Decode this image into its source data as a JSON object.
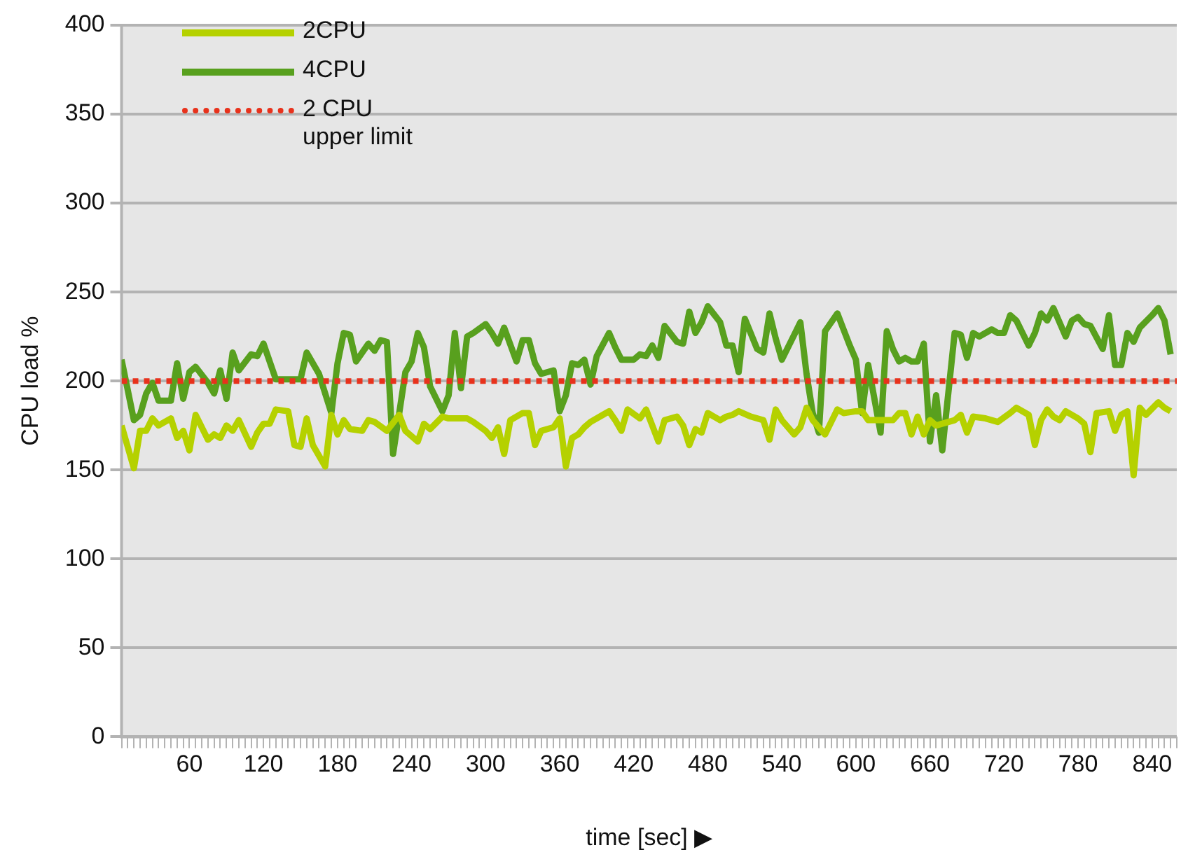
{
  "chart_data": {
    "type": "line",
    "xlabel": "time [sec] ▶",
    "ylabel": "CPU load %",
    "grid": "y",
    "legend": "top left",
    "marker": "none",
    "xlim": [
      5,
      860
    ],
    "ylim": [
      0,
      400
    ],
    "yticks": [
      0,
      50,
      100,
      150,
      200,
      250,
      300,
      350,
      400
    ],
    "xticks": [
      {
        "value": 5,
        "label": null
      },
      {
        "value": 10,
        "label": null
      },
      {
        "value": 15,
        "label": null
      },
      {
        "value": 20,
        "label": null
      },
      {
        "value": 25,
        "label": null
      },
      {
        "value": 30,
        "label": null
      },
      {
        "value": 35,
        "label": null
      },
      {
        "value": 40,
        "label": null
      },
      {
        "value": 45,
        "label": null
      },
      {
        "value": 50,
        "label": null
      },
      {
        "value": 55,
        "label": null
      },
      60,
      {
        "value": 65,
        "label": null
      },
      {
        "value": 70,
        "label": null
      },
      {
        "value": 75,
        "label": null
      },
      {
        "value": 80,
        "label": null
      },
      {
        "value": 85,
        "label": null
      },
      {
        "value": 90,
        "label": null
      },
      {
        "value": 95,
        "label": null
      },
      {
        "value": 100,
        "label": null
      },
      {
        "value": 105,
        "label": null
      },
      {
        "value": 110,
        "label": null
      },
      {
        "value": 115,
        "label": null
      },
      120,
      {
        "value": 125,
        "label": null
      },
      {
        "value": 130,
        "label": null
      },
      {
        "value": 135,
        "label": null
      },
      {
        "value": 140,
        "label": null
      },
      {
        "value": 145,
        "label": null
      },
      {
        "value": 150,
        "label": null
      },
      {
        "value": 155,
        "label": null
      },
      {
        "value": 160,
        "label": null
      },
      {
        "value": 165,
        "label": null
      },
      {
        "value": 170,
        "label": null
      },
      {
        "value": 175,
        "label": null
      },
      180,
      {
        "value": 185,
        "label": null
      },
      {
        "value": 190,
        "label": null
      },
      {
        "value": 195,
        "label": null
      },
      {
        "value": 200,
        "label": null
      },
      {
        "value": 205,
        "label": null
      },
      {
        "value": 210,
        "label": null
      },
      {
        "value": 215,
        "label": null
      },
      {
        "value": 220,
        "label": null
      },
      {
        "value": 225,
        "label": null
      },
      {
        "value": 230,
        "label": null
      },
      {
        "value": 235,
        "label": null
      },
      240,
      {
        "value": 245,
        "label": null
      },
      {
        "value": 250,
        "label": null
      },
      {
        "value": 255,
        "label": null
      },
      {
        "value": 260,
        "label": null
      },
      {
        "value": 265,
        "label": null
      },
      {
        "value": 270,
        "label": null
      },
      {
        "value": 275,
        "label": null
      },
      {
        "value": 280,
        "label": null
      },
      {
        "value": 285,
        "label": null
      },
      {
        "value": 290,
        "label": null
      },
      {
        "value": 295,
        "label": null
      },
      300,
      {
        "value": 305,
        "label": null
      },
      {
        "value": 310,
        "label": null
      },
      {
        "value": 315,
        "label": null
      },
      {
        "value": 320,
        "label": null
      },
      {
        "value": 325,
        "label": null
      },
      {
        "value": 330,
        "label": null
      },
      {
        "value": 335,
        "label": null
      },
      {
        "value": 340,
        "label": null
      },
      {
        "value": 345,
        "label": null
      },
      {
        "value": 350,
        "label": null
      },
      {
        "value": 355,
        "label": null
      },
      360,
      {
        "value": 365,
        "label": null
      },
      {
        "value": 370,
        "label": null
      },
      {
        "value": 375,
        "label": null
      },
      {
        "value": 380,
        "label": null
      },
      {
        "value": 385,
        "label": null
      },
      {
        "value": 390,
        "label": null
      },
      {
        "value": 395,
        "label": null
      },
      {
        "value": 400,
        "label": null
      },
      {
        "value": 405,
        "label": null
      },
      {
        "value": 410,
        "label": null
      },
      {
        "value": 415,
        "label": null
      },
      420,
      {
        "value": 425,
        "label": null
      },
      {
        "value": 430,
        "label": null
      },
      {
        "value": 435,
        "label": null
      },
      {
        "value": 440,
        "label": null
      },
      {
        "value": 445,
        "label": null
      },
      {
        "value": 450,
        "label": null
      },
      {
        "value": 455,
        "label": null
      },
      {
        "value": 460,
        "label": null
      },
      {
        "value": 465,
        "label": null
      },
      {
        "value": 470,
        "label": null
      },
      {
        "value": 475,
        "label": null
      },
      480,
      {
        "value": 485,
        "label": null
      },
      {
        "value": 490,
        "label": null
      },
      {
        "value": 495,
        "label": null
      },
      {
        "value": 500,
        "label": null
      },
      {
        "value": 505,
        "label": null
      },
      {
        "value": 510,
        "label": null
      },
      {
        "value": 515,
        "label": null
      },
      {
        "value": 520,
        "label": null
      },
      {
        "value": 525,
        "label": null
      },
      {
        "value": 530,
        "label": null
      },
      {
        "value": 535,
        "label": null
      },
      540,
      {
        "value": 545,
        "label": null
      },
      {
        "value": 550,
        "label": null
      },
      {
        "value": 555,
        "label": null
      },
      {
        "value": 560,
        "label": null
      },
      {
        "value": 565,
        "label": null
      },
      {
        "value": 570,
        "label": null
      },
      {
        "value": 575,
        "label": null
      },
      {
        "value": 580,
        "label": null
      },
      {
        "value": 585,
        "label": null
      },
      {
        "value": 590,
        "label": null
      },
      {
        "value": 595,
        "label": null
      },
      600,
      {
        "value": 605,
        "label": null
      },
      {
        "value": 610,
        "label": null
      },
      {
        "value": 615,
        "label": null
      },
      {
        "value": 620,
        "label": null
      },
      {
        "value": 625,
        "label": null
      },
      {
        "value": 630,
        "label": null
      },
      {
        "value": 635,
        "label": null
      },
      {
        "value": 640,
        "label": null
      },
      {
        "value": 645,
        "label": null
      },
      {
        "value": 650,
        "label": null
      },
      {
        "value": 655,
        "label": null
      },
      660,
      {
        "value": 665,
        "label": null
      },
      {
        "value": 670,
        "label": null
      },
      {
        "value": 675,
        "label": null
      },
      {
        "value": 680,
        "label": null
      },
      {
        "value": 685,
        "label": null
      },
      {
        "value": 690,
        "label": null
      },
      {
        "value": 695,
        "label": null
      },
      {
        "value": 700,
        "label": null
      },
      {
        "value": 705,
        "label": null
      },
      {
        "value": 710,
        "label": null
      },
      {
        "value": 715,
        "label": null
      },
      720,
      {
        "value": 725,
        "label": null
      },
      {
        "value": 730,
        "label": null
      },
      {
        "value": 735,
        "label": null
      },
      {
        "value": 740,
        "label": null
      },
      {
        "value": 745,
        "label": null
      },
      {
        "value": 750,
        "label": null
      },
      {
        "value": 755,
        "label": null
      },
      {
        "value": 760,
        "label": null
      },
      {
        "value": 765,
        "label": null
      },
      {
        "value": 770,
        "label": null
      },
      {
        "value": 775,
        "label": null
      },
      780,
      {
        "value": 785,
        "label": null
      },
      {
        "value": 790,
        "label": null
      },
      {
        "value": 795,
        "label": null
      },
      {
        "value": 800,
        "label": null
      },
      {
        "value": 805,
        "label": null
      },
      {
        "value": 810,
        "label": null
      },
      {
        "value": 815,
        "label": null
      },
      {
        "value": 820,
        "label": null
      },
      {
        "value": 825,
        "label": null
      },
      {
        "value": 830,
        "label": null
      },
      {
        "value": 835,
        "label": null
      },
      840,
      {
        "value": 845,
        "label": null
      },
      {
        "value": 850,
        "label": null
      },
      {
        "value": 855,
        "label": null
      },
      {
        "value": 860,
        "label": null
      }
    ],
    "series": [
      {
        "name": "2CPU",
        "color": "#b5d100",
        "line_style": "solid",
        "x": [
          5,
          15,
          20,
          25,
          30,
          35,
          45,
          50,
          55,
          60,
          65,
          75,
          80,
          85,
          90,
          95,
          100,
          110,
          115,
          120,
          125,
          130,
          140,
          145,
          150,
          155,
          160,
          170,
          175,
          180,
          185,
          190,
          200,
          205,
          210,
          220,
          230,
          235,
          245,
          250,
          255,
          265,
          270,
          275,
          285,
          290,
          300,
          305,
          310,
          315,
          320,
          330,
          335,
          340,
          345,
          355,
          360,
          365,
          370,
          375,
          380,
          385,
          395,
          400,
          405,
          410,
          415,
          425,
          430,
          435,
          440,
          445,
          455,
          460,
          465,
          470,
          475,
          480,
          490,
          495,
          500,
          505,
          515,
          525,
          530,
          535,
          540,
          550,
          555,
          560,
          565,
          575,
          585,
          590,
          600,
          605,
          610,
          620,
          625,
          630,
          635,
          640,
          645,
          650,
          655,
          660,
          665,
          670,
          680,
          685,
          690,
          695,
          705,
          715,
          725,
          730,
          740,
          745,
          750,
          755,
          760,
          765,
          770,
          780,
          785,
          790,
          795,
          805,
          810,
          815,
          820,
          825,
          830,
          835,
          845,
          850,
          855
        ],
        "values": [
          175,
          151,
          172,
          172,
          179,
          175,
          179,
          168,
          172,
          161,
          181,
          167,
          170,
          168,
          175,
          172,
          178,
          163,
          171,
          176,
          176,
          184,
          183,
          164,
          163,
          179,
          164,
          152,
          181,
          170,
          178,
          173,
          172,
          178,
          177,
          172,
          181,
          172,
          166,
          176,
          173,
          180,
          179,
          179,
          179,
          177,
          172,
          168,
          174,
          159,
          178,
          182,
          182,
          164,
          172,
          174,
          179,
          152,
          168,
          170,
          174,
          177,
          181,
          183,
          178,
          172,
          184,
          179,
          184,
          175,
          166,
          178,
          180,
          175,
          164,
          173,
          171,
          182,
          178,
          180,
          181,
          183,
          180,
          178,
          167,
          184,
          178,
          170,
          174,
          185,
          178,
          170,
          184,
          182,
          183,
          183,
          178,
          178,
          178,
          178,
          182,
          182,
          170,
          180,
          170,
          178,
          175,
          176,
          178,
          181,
          171,
          180,
          179,
          177,
          182,
          185,
          181,
          164,
          178,
          184,
          180,
          178,
          183,
          179,
          176,
          160,
          182,
          183,
          172,
          181,
          183,
          147,
          185,
          181,
          188,
          185,
          183
        ]
      },
      {
        "name": "4CPU",
        "color": "#58a01e",
        "line_style": "solid",
        "x": [
          5,
          15,
          20,
          25,
          30,
          35,
          45,
          50,
          55,
          60,
          65,
          75,
          80,
          85,
          90,
          95,
          100,
          110,
          115,
          120,
          130,
          150,
          155,
          165,
          175,
          180,
          185,
          190,
          195,
          205,
          210,
          215,
          220,
          225,
          235,
          240,
          245,
          250,
          255,
          265,
          270,
          275,
          280,
          285,
          290,
          300,
          305,
          310,
          315,
          325,
          330,
          335,
          340,
          345,
          355,
          360,
          365,
          370,
          375,
          380,
          385,
          390,
          400,
          405,
          410,
          420,
          425,
          430,
          435,
          440,
          445,
          455,
          460,
          465,
          470,
          475,
          480,
          490,
          495,
          500,
          505,
          510,
          520,
          525,
          530,
          535,
          540,
          550,
          555,
          560,
          565,
          570,
          575,
          585,
          590,
          595,
          600,
          605,
          610,
          620,
          625,
          630,
          635,
          640,
          645,
          650,
          655,
          660,
          665,
          670,
          680,
          685,
          690,
          695,
          700,
          710,
          715,
          720,
          725,
          730,
          740,
          745,
          750,
          755,
          760,
          770,
          775,
          780,
          785,
          790,
          800,
          805,
          810,
          815,
          820,
          825,
          830,
          840,
          845,
          850,
          855
        ],
        "values": [
          212,
          178,
          181,
          193,
          199,
          189,
          189,
          210,
          190,
          205,
          208,
          199,
          193,
          206,
          190,
          216,
          206,
          215,
          214,
          221,
          201,
          201,
          216,
          204,
          182,
          210,
          227,
          226,
          211,
          221,
          217,
          223,
          222,
          159,
          205,
          211,
          227,
          219,
          197,
          183,
          192,
          227,
          196,
          225,
          227,
          232,
          227,
          221,
          230,
          211,
          223,
          223,
          210,
          204,
          206,
          183,
          192,
          210,
          209,
          212,
          198,
          214,
          227,
          219,
          212,
          212,
          215,
          214,
          220,
          213,
          231,
          222,
          221,
          239,
          227,
          233,
          242,
          233,
          220,
          220,
          205,
          235,
          218,
          216,
          238,
          224,
          212,
          226,
          233,
          204,
          182,
          171,
          228,
          238,
          229,
          220,
          212,
          182,
          209,
          171,
          228,
          218,
          211,
          213,
          211,
          211,
          221,
          166,
          192,
          161,
          227,
          226,
          213,
          227,
          225,
          229,
          227,
          227,
          237,
          234,
          220,
          227,
          238,
          234,
          241,
          225,
          234,
          236,
          232,
          231,
          218,
          237,
          209,
          209,
          227,
          222,
          230,
          237,
          241,
          234,
          215
        ]
      },
      {
        "name": "2 CPU upper limit",
        "color": "#e8321c",
        "line_style": "dotted",
        "x": [
          5,
          860
        ],
        "values": [
          200,
          200
        ]
      }
    ]
  }
}
